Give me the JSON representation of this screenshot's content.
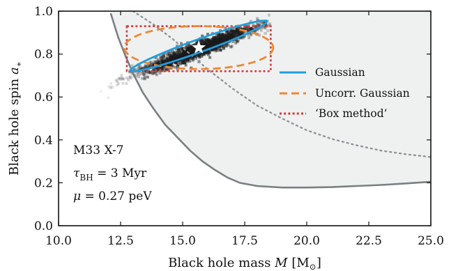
{
  "chart_data": {
    "type": "scatter",
    "title": "",
    "xlabel_parts": {
      "text": "Black hole mass",
      "var": "M",
      "unit": "[M",
      "sun": "⊙",
      "close": "]"
    },
    "ylabel_parts": {
      "text": "Black hole spin",
      "var": "a",
      "sub": "∗"
    },
    "xlim": [
      10.0,
      25.0
    ],
    "ylim": [
      0.0,
      1.0
    ],
    "xticks": [
      "10.0",
      "12.5",
      "15.0",
      "17.5",
      "20.0",
      "22.5",
      "25.0"
    ],
    "yticks": [
      "0.0",
      "0.2",
      "0.4",
      "0.6",
      "0.8",
      "1.0"
    ],
    "grid": false,
    "legend_position": "center-right",
    "legend": [
      {
        "label": "Gaussian",
        "style": "solid",
        "color": "#1f9ee0"
      },
      {
        "label": "Uncorr. Gaussian",
        "style": "dashed",
        "color": "#ee8833"
      },
      {
        "label": "‘Box method’",
        "style": "dotted",
        "color": "#dd3333"
      }
    ],
    "annotation": {
      "system": "M33 X-7",
      "tau_sym": "τ",
      "tau_sub": "BH",
      "tau_val": " = 3 Myr",
      "mu_sym": "μ",
      "mu_val": " = 0.27 peV"
    },
    "best_fit_star": {
      "x": 15.65,
      "y": 0.83
    },
    "posterior_samples_trend": {
      "x_range": [
        10.9,
        18.6
      ],
      "y_at_x_min": 0.61,
      "slope_per_msun": 0.0445,
      "center": [
        15.65,
        0.835
      ]
    },
    "exclusion_boundary": {
      "x": [
        12.1,
        12.4,
        12.7,
        13.0,
        13.4,
        13.8,
        14.3,
        14.8,
        15.3,
        15.8,
        16.3,
        16.8,
        17.3,
        18.0,
        19.0,
        20.0,
        21.0,
        22.0,
        23.0,
        24.0,
        25.0
      ],
      "y": [
        0.99,
        0.88,
        0.79,
        0.71,
        0.62,
        0.55,
        0.47,
        0.41,
        0.35,
        0.3,
        0.26,
        0.225,
        0.2,
        0.185,
        0.178,
        0.178,
        0.18,
        0.185,
        0.19,
        0.197,
        0.205
      ]
    },
    "dotted_curve": {
      "x": [
        13.0,
        13.4,
        13.8,
        14.2,
        14.6,
        15.0,
        15.5,
        16.0,
        16.5,
        17.0,
        17.5,
        18.0,
        19.0,
        20.0,
        21.0,
        22.0,
        23.0,
        24.0,
        25.0
      ],
      "y": [
        1.0,
        0.97,
        0.94,
        0.905,
        0.87,
        0.83,
        0.78,
        0.73,
        0.685,
        0.64,
        0.6,
        0.56,
        0.5,
        0.445,
        0.405,
        0.375,
        0.35,
        0.333,
        0.32
      ]
    },
    "gaussian_ellipse": {
      "cx": 15.65,
      "cy": 0.838,
      "semi_major_x": 2.75,
      "semi_major_y": 0.115,
      "half_width_perp": 0.03
    },
    "uncorr_gaussian_ellipse": {
      "cx": 15.65,
      "cy": 0.83,
      "rx": 3.0,
      "ry": 0.1
    },
    "box_method": {
      "x_min": 12.75,
      "x_max": 18.55,
      "y_min": 0.72,
      "y_max": 0.93
    }
  }
}
